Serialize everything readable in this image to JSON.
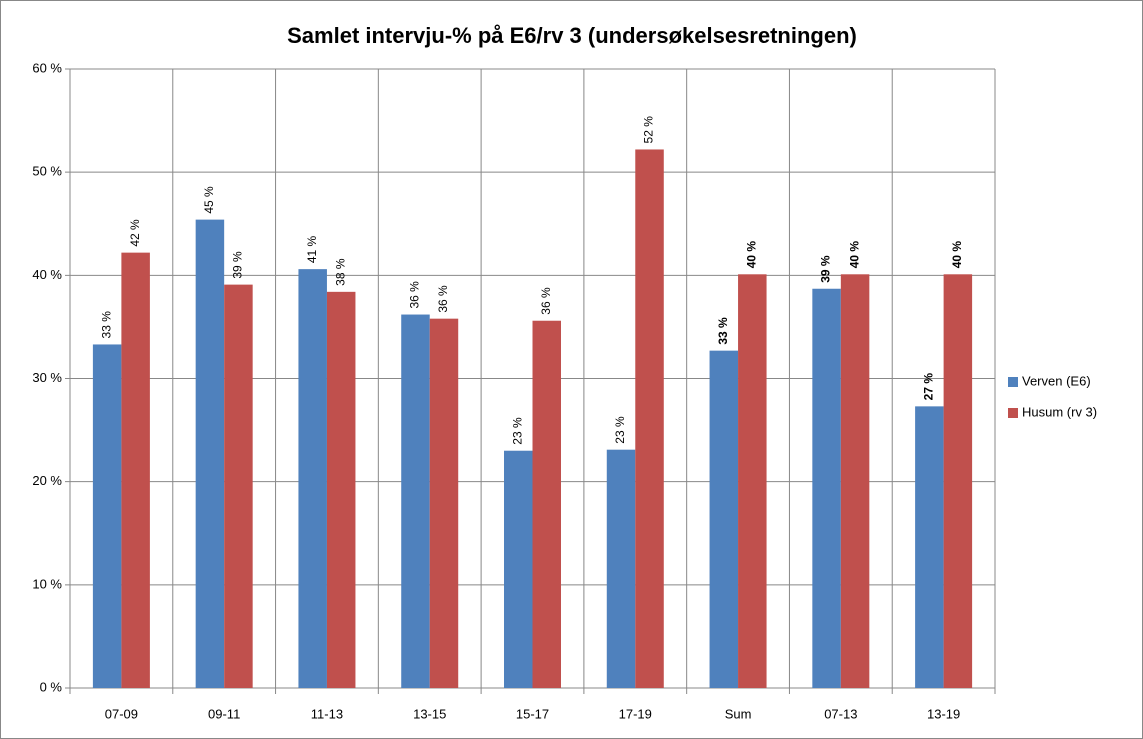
{
  "chart_data": {
    "type": "bar",
    "title": "Samlet intervju-% på E6/rv 3 (undersøkelsesretningen)",
    "categories": [
      "07-09",
      "09-11",
      "11-13",
      "13-15",
      "15-17",
      "17-19",
      "Sum",
      "07-13",
      "13-19"
    ],
    "series": [
      {
        "name": "Verven (E6)",
        "color": "#4f81bd",
        "values": [
          33.3,
          45.4,
          40.6,
          36.2,
          23.0,
          23.1,
          32.7,
          38.7,
          27.3
        ],
        "value_labels": [
          "33 %",
          "45 %",
          "41 %",
          "36 %",
          "23 %",
          "23 %",
          "33 %",
          "39 %",
          "27 %"
        ]
      },
      {
        "name": "Husum (rv 3)",
        "color": "#c0504d",
        "values": [
          42.2,
          39.1,
          38.4,
          35.8,
          35.6,
          52.2,
          40.1,
          40.1,
          40.1
        ],
        "value_labels": [
          "42 %",
          "39 %",
          "38 %",
          "36 %",
          "36 %",
          "52 %",
          "40 %",
          "40 %",
          "40 %"
        ]
      }
    ],
    "ylim": [
      0,
      60
    ],
    "yticks": [
      {
        "value": 0,
        "label": "0 %"
      },
      {
        "value": 10,
        "label": "10 %"
      },
      {
        "value": 20,
        "label": "20 %"
      },
      {
        "value": 30,
        "label": "30 %"
      },
      {
        "value": 40,
        "label": "40 %"
      },
      {
        "value": 50,
        "label": "50 %"
      },
      {
        "value": 60,
        "label": "60 %"
      }
    ],
    "grid": true,
    "legend": "right"
  }
}
